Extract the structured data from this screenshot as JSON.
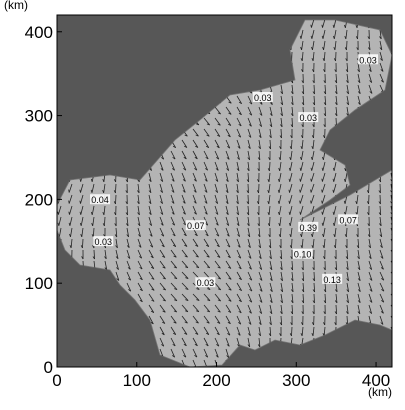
{
  "chart_data": {
    "type": "vector-field",
    "x_label": "(km)",
    "y_label": "(km)",
    "xlim": [
      0,
      420
    ],
    "ylim": [
      0,
      420
    ],
    "xticks": [
      0,
      100,
      200,
      300,
      400
    ],
    "yticks": [
      0,
      100,
      200,
      300,
      400
    ],
    "contour_labels": [
      {
        "text": "0.03",
        "x": 390,
        "y": 366
      },
      {
        "text": "0.03",
        "x": 258,
        "y": 321
      },
      {
        "text": "0.03",
        "x": 315,
        "y": 297
      },
      {
        "text": "0.04",
        "x": 54,
        "y": 199
      },
      {
        "text": "0.03",
        "x": 58,
        "y": 149
      },
      {
        "text": "0.07",
        "x": 174,
        "y": 168
      },
      {
        "text": "0.03",
        "x": 186,
        "y": 100
      },
      {
        "text": "0.39",
        "x": 315,
        "y": 166
      },
      {
        "text": "0.07",
        "x": 365,
        "y": 175
      },
      {
        "text": "0.10",
        "x": 308,
        "y": 134
      },
      {
        "text": "0.13",
        "x": 345,
        "y": 104
      }
    ]
  }
}
